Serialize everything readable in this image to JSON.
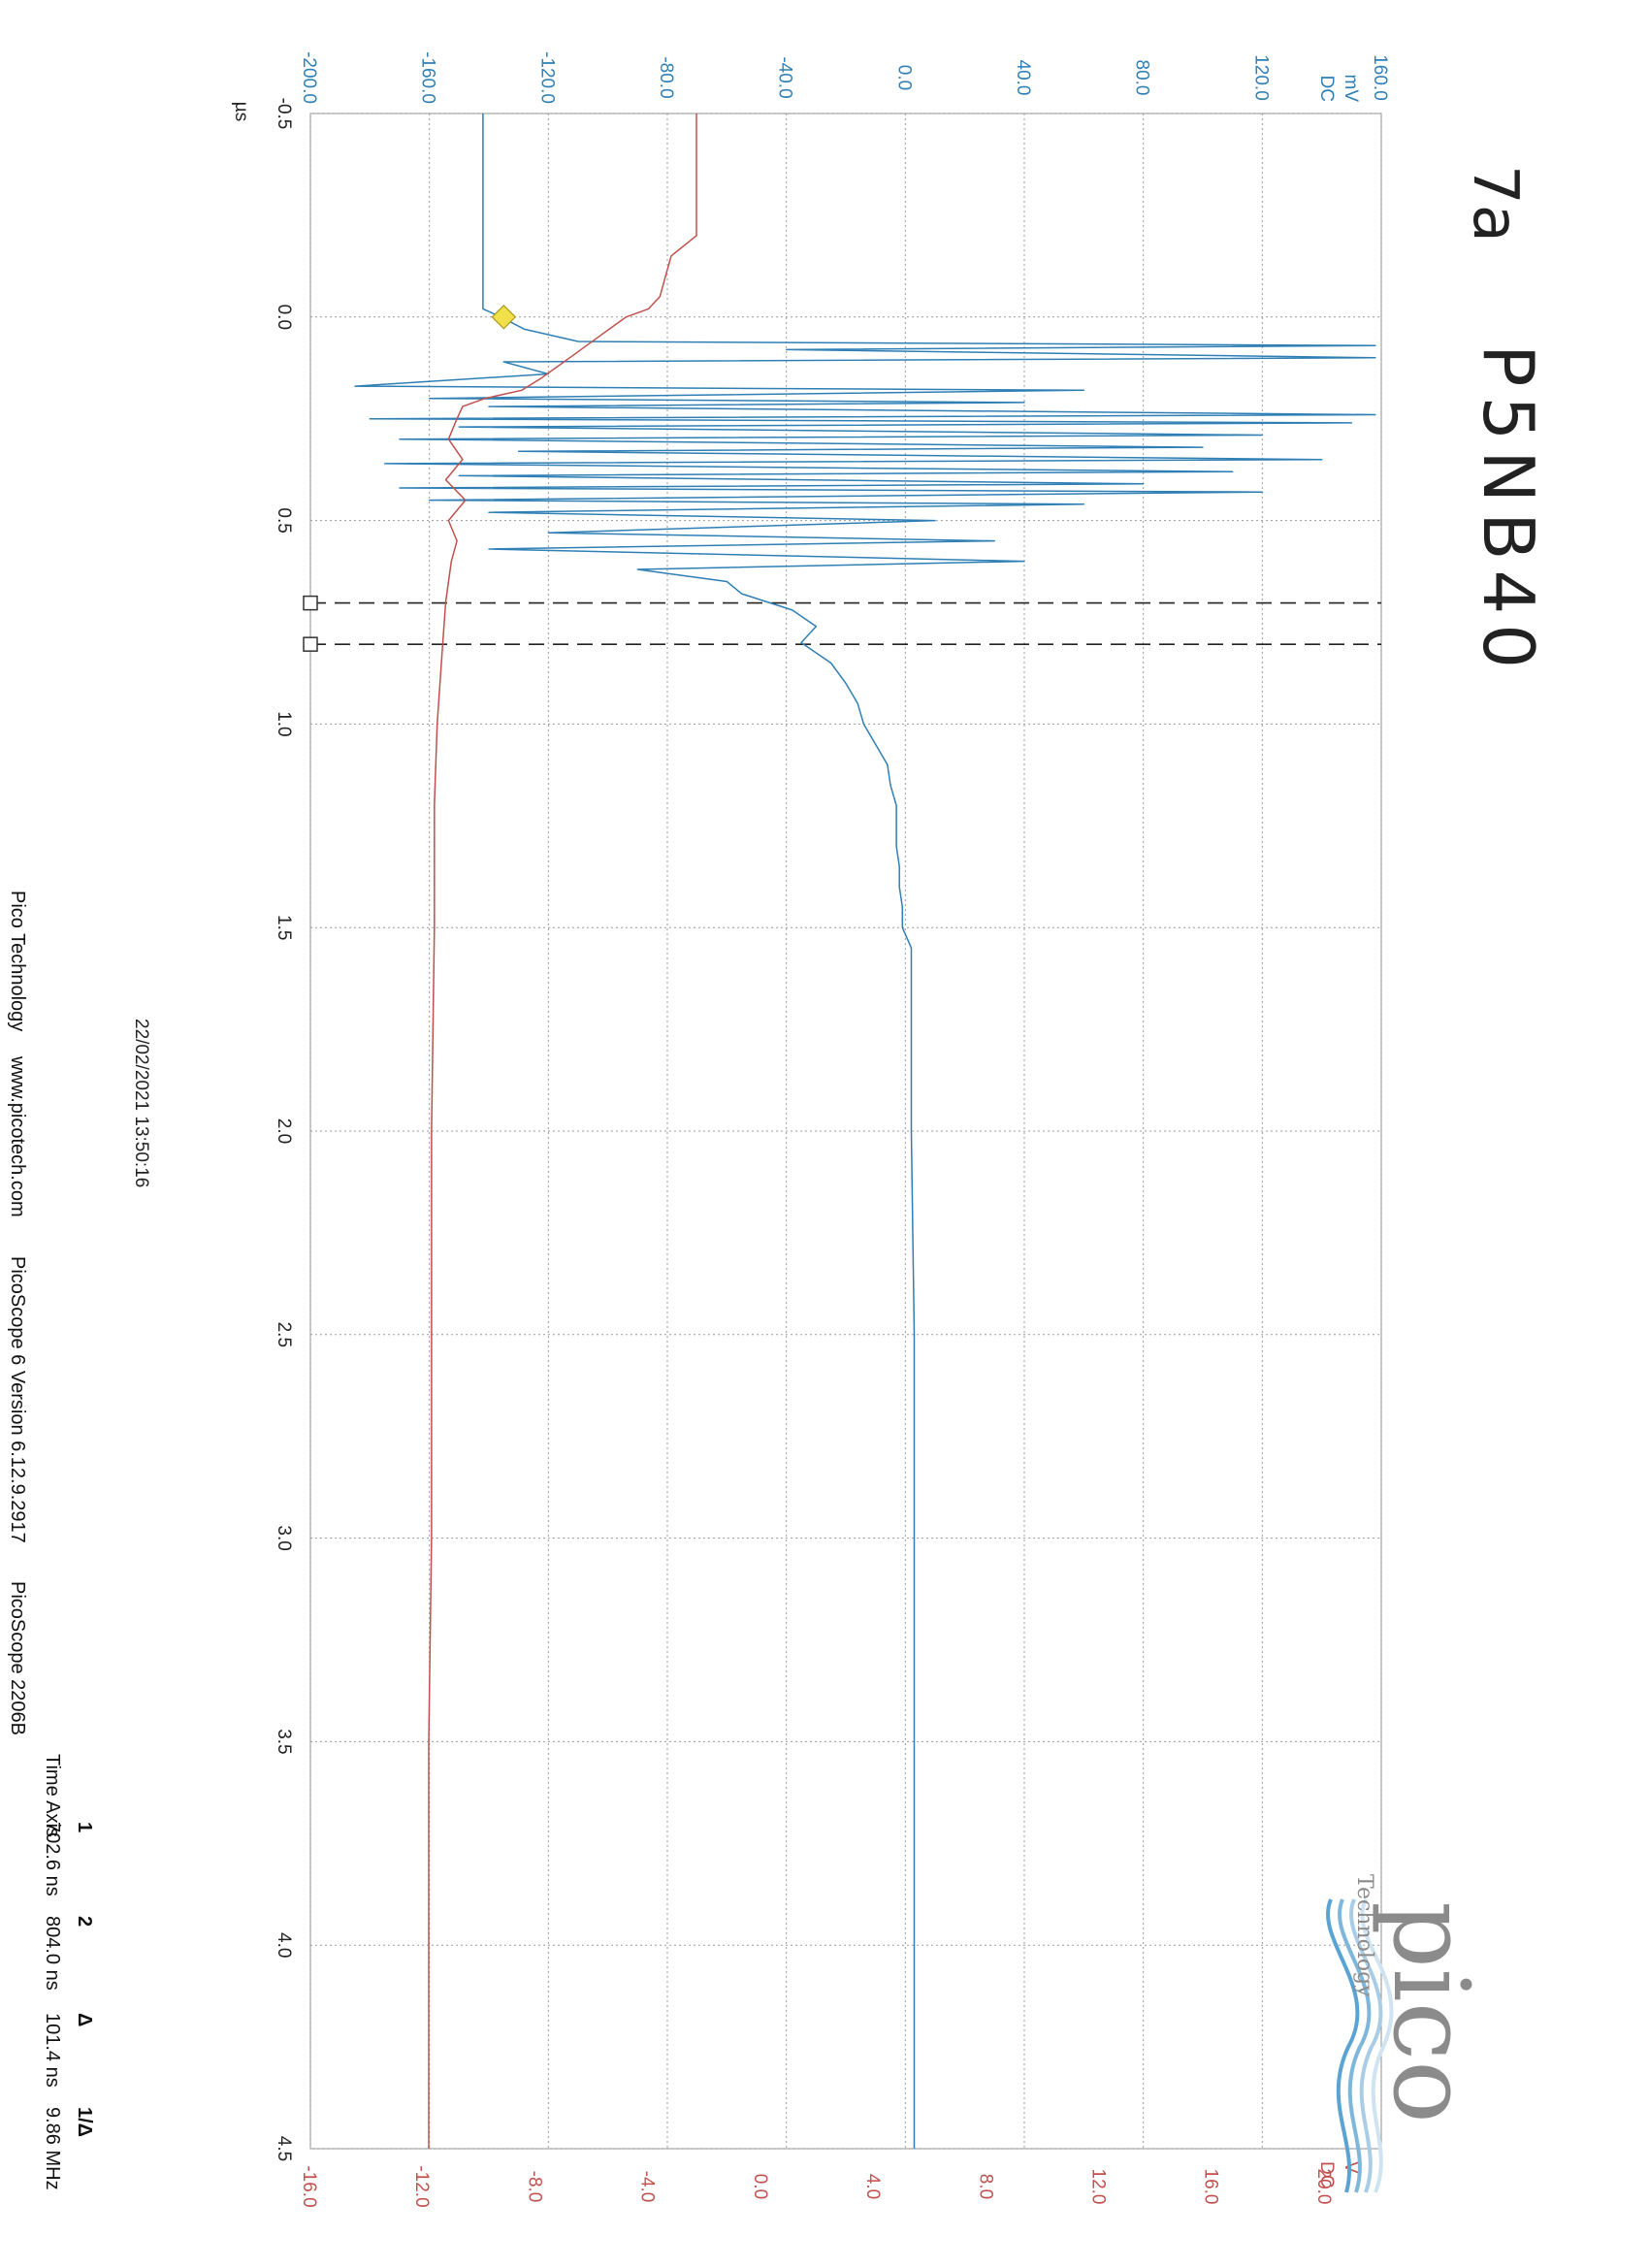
{
  "annotations": {
    "handwritten_id": "7a",
    "handwritten_label": "P5NB40"
  },
  "logo": {
    "name": "pico-logo",
    "wordmark": "pico",
    "tagline": "Technology"
  },
  "timestamp": "22/02/2021 13:50:16",
  "footer": {
    "company": "Pico Technology",
    "website": "www.picotech.com",
    "software": "PicoScope 6 Version 6.12.9.2917",
    "device": "PicoScope 2206B"
  },
  "measurements": {
    "row_label": "Time Axis",
    "columns": [
      {
        "header": "1",
        "value": "702.6 ns"
      },
      {
        "header": "2",
        "value": "804.0 ns"
      },
      {
        "header": "Δ",
        "value": "101.4 ns"
      },
      {
        "header": "1/Δ",
        "value": "9.86 MHz"
      }
    ]
  },
  "colors": {
    "channel_a": "#2f7fb5",
    "channel_b": "#c0504d",
    "trigger_marker": "#f2e04a",
    "grid": "#9a9a9a"
  },
  "chart_data": {
    "type": "line",
    "xlabel": "µs",
    "xlim": [
      -0.5,
      4.5
    ],
    "x_ticks": [
      "-0.5",
      "0.0",
      "0.5",
      "1.0",
      "1.5",
      "2.0",
      "2.5",
      "3.0",
      "3.5",
      "4.0",
      "4.5"
    ],
    "grid": true,
    "axes": {
      "channel_a": {
        "unit": "mV",
        "coupling": "DC",
        "range": [
          -200,
          160
        ],
        "ticks": [
          "-200.0",
          "-160.0",
          "-120.0",
          "-80.0",
          "-40.0",
          "0.0",
          "40.0",
          "80.0",
          "120.0",
          "160.0"
        ]
      },
      "channel_b": {
        "unit": "V",
        "coupling": "DC",
        "range": [
          -16,
          22
        ],
        "ticks": [
          "-16.0",
          "-12.0",
          "-8.0",
          "-4.0",
          "0.0",
          "4.0",
          "8.0",
          "12.0",
          "16.0",
          "20.0"
        ]
      }
    },
    "trigger": {
      "x": 0.0,
      "y": -135
    },
    "cursors_x": [
      0.7026,
      0.804
    ],
    "series": [
      {
        "axis": "channel_a",
        "x": [
          -0.5,
          -0.02,
          0.0,
          0.03,
          0.06,
          0.07,
          0.08,
          0.1,
          0.11,
          0.14,
          0.17,
          0.18,
          0.2,
          0.21,
          0.22,
          0.24,
          0.25,
          0.26,
          0.27,
          0.29,
          0.3,
          0.32,
          0.33,
          0.35,
          0.36,
          0.38,
          0.39,
          0.41,
          0.42,
          0.43,
          0.45,
          0.46,
          0.48,
          0.5,
          0.53,
          0.55,
          0.57,
          0.6,
          0.62,
          0.65,
          0.68,
          0.72,
          0.76,
          0.8,
          0.85,
          0.9,
          0.95,
          1.0,
          1.05,
          1.1,
          1.15,
          1.2,
          1.25,
          1.3,
          1.35,
          1.4,
          1.45,
          1.5,
          1.55,
          1.6,
          2.0,
          2.5,
          3.0,
          3.5,
          4.0,
          4.5
        ],
        "y": [
          -142,
          -142,
          -136,
          -128,
          -110,
          158,
          -40,
          158,
          -135,
          -120,
          -185,
          60,
          -160,
          40,
          -140,
          158,
          -180,
          150,
          -150,
          120,
          -170,
          100,
          -130,
          140,
          -175,
          110,
          -150,
          80,
          -170,
          120,
          -160,
          60,
          -140,
          10,
          -120,
          30,
          -140,
          40,
          -90,
          -60,
          -55,
          -38,
          -30,
          -35,
          -25,
          -20,
          -16,
          -14,
          -10,
          -6,
          -5,
          -3,
          -3,
          -3,
          -2,
          -2,
          -1,
          -1,
          2,
          2,
          2,
          3,
          3,
          3,
          3,
          3
        ]
      },
      {
        "axis": "channel_b",
        "x": [
          -0.5,
          -0.2,
          -0.15,
          -0.1,
          -0.05,
          -0.02,
          0.0,
          0.05,
          0.1,
          0.15,
          0.18,
          0.2,
          0.22,
          0.25,
          0.3,
          0.35,
          0.4,
          0.45,
          0.5,
          0.55,
          0.6,
          0.7,
          0.8,
          0.9,
          1.0,
          1.2,
          1.5,
          2.0,
          2.5,
          3.0,
          3.5,
          4.0,
          4.5
        ],
        "y": [
          -2.3,
          -2.3,
          -3.2,
          -3.4,
          -3.6,
          -4.0,
          -4.8,
          -5.8,
          -6.8,
          -7.8,
          -8.5,
          -9.8,
          -10.6,
          -10.8,
          -11.1,
          -10.6,
          -11.2,
          -10.5,
          -11.1,
          -10.8,
          -11.0,
          -11.2,
          -11.3,
          -11.4,
          -11.5,
          -11.6,
          -11.6,
          -11.7,
          -11.7,
          -11.7,
          -11.8,
          -11.8,
          -11.8
        ]
      }
    ]
  }
}
